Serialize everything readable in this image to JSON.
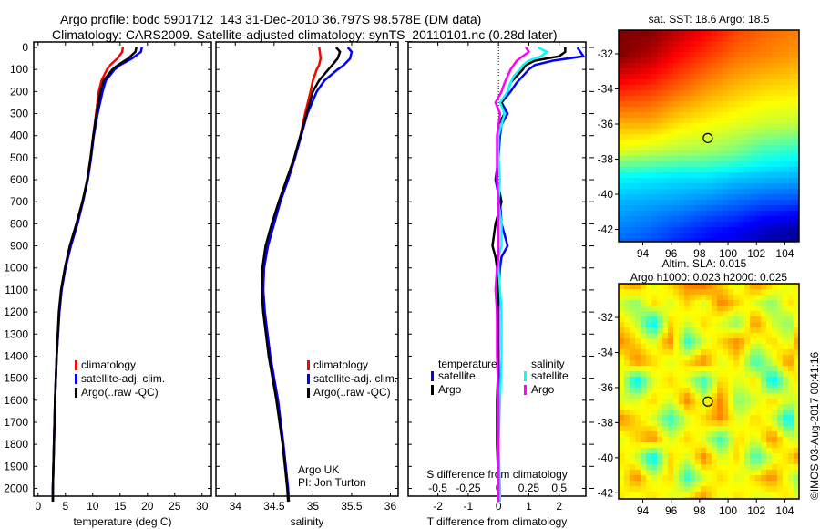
{
  "header": {
    "title_line1": "Argo profile: bodc 5901712_143 31-Dec-2010 36.797S 98.578E (DM data)",
    "title_line2": "Climatology: CARS2009. Satellite-adjusted climatology: synTS_20110101.nc (0.28d later)"
  },
  "footer": {
    "credit": "©IMOS 03-Aug-2017 00:41:16",
    "institution": "Argo UK",
    "pi": "PI: Jon Turton"
  },
  "colors": {
    "climatology": "#ff0000",
    "satellite": "#0000ff",
    "argo": "#000000",
    "sal_satellite": "#00ffff",
    "sal_argo": "#ff00ff"
  },
  "chart_data": [
    {
      "type": "line",
      "name": "temperature",
      "xlabel": "temperature (deg C)",
      "xlim": [
        -0.8,
        31.7
      ],
      "ylim": [
        2060,
        0
      ],
      "xticks": [
        0,
        5,
        10,
        15,
        20,
        25,
        30
      ],
      "yticks": [
        0,
        100,
        200,
        300,
        400,
        500,
        600,
        700,
        800,
        900,
        1000,
        1100,
        1200,
        1300,
        1400,
        1500,
        1600,
        1700,
        1800,
        1900,
        2000
      ],
      "depth": [
        0,
        20,
        50,
        80,
        100,
        150,
        200,
        300,
        400,
        500,
        600,
        700,
        800,
        900,
        1000,
        1100,
        1200,
        1400,
        1600,
        1800,
        2000,
        2060
      ],
      "series": [
        {
          "name": "climatology",
          "color": "#ff0000",
          "values": [
            15.5,
            15.4,
            14.5,
            13.2,
            12.6,
            11.6,
            11.1,
            10.6,
            10.1,
            9.6,
            9.0,
            8.2,
            7.2,
            6.0,
            5.0,
            4.3,
            3.9,
            3.4,
            3.1,
            2.9,
            2.7,
            2.7
          ]
        },
        {
          "name": "satellite-adj. clim.",
          "color": "#0000ff",
          "values": [
            19.0,
            18.8,
            17.2,
            15.0,
            14.0,
            12.4,
            11.8,
            10.9,
            10.2,
            9.7,
            9.1,
            8.2,
            7.2,
            6.0,
            5.0,
            4.3,
            3.9,
            3.4,
            3.1,
            2.9,
            2.7,
            2.7
          ]
        },
        {
          "name": "Argo(..raw -QC)",
          "color": "#000000",
          "values": [
            18.0,
            17.8,
            16.5,
            14.6,
            13.6,
            12.0,
            11.4,
            10.7,
            10.1,
            9.6,
            9.0,
            8.1,
            7.0,
            5.8,
            4.9,
            4.2,
            3.8,
            3.4,
            3.1,
            2.9,
            2.7,
            2.7
          ]
        }
      ],
      "legend": [
        "climatology",
        "satellite-adj. clim.",
        "Argo(..raw -QC)"
      ],
      "legend_position": "lower-center"
    },
    {
      "type": "line",
      "name": "salinity",
      "xlabel": "salinity",
      "xlim": [
        33.75,
        36.1
      ],
      "ylim": [
        2060,
        0
      ],
      "xticks": [
        34,
        34.5,
        35,
        35.5,
        36
      ],
      "depth": [
        0,
        20,
        50,
        80,
        100,
        150,
        200,
        300,
        400,
        500,
        600,
        700,
        800,
        900,
        1000,
        1100,
        1200,
        1400,
        1600,
        1800,
        2000,
        2060
      ],
      "series": [
        {
          "name": "climatology",
          "color": "#ff0000",
          "values": [
            35.08,
            35.09,
            35.1,
            35.08,
            35.05,
            35.0,
            34.97,
            34.9,
            34.84,
            34.77,
            34.68,
            34.58,
            34.5,
            34.42,
            34.37,
            34.36,
            34.38,
            34.45,
            34.55,
            34.62,
            34.68,
            34.69
          ]
        },
        {
          "name": "satellite-adj. clim.",
          "color": "#0000ff",
          "values": [
            35.45,
            35.5,
            35.48,
            35.4,
            35.32,
            35.15,
            35.05,
            34.93,
            34.85,
            34.77,
            34.68,
            34.58,
            34.5,
            34.42,
            34.37,
            34.36,
            34.38,
            34.45,
            34.55,
            34.62,
            34.68,
            34.69
          ]
        },
        {
          "name": "Argo(..raw -QC)",
          "color": "#000000",
          "values": [
            35.3,
            35.35,
            35.32,
            35.25,
            35.2,
            35.08,
            35.0,
            34.92,
            34.84,
            34.76,
            34.66,
            34.56,
            34.47,
            34.39,
            34.35,
            34.34,
            34.36,
            34.43,
            34.53,
            34.61,
            34.67,
            34.68
          ]
        }
      ],
      "legend": [
        "climatology",
        "satellite-adj. clim.",
        "Argo(..raw -QC)"
      ],
      "legend_position": "lower-center"
    },
    {
      "type": "line",
      "name": "differences",
      "xlabel": "T difference from climatology",
      "xlim": [
        -2.98,
        2.88
      ],
      "ylim": [
        2060,
        0
      ],
      "xticks": [
        -2,
        -1,
        0,
        1,
        2
      ],
      "s_label": "S difference from climatology",
      "s_ticks": [
        -0.5,
        -0.25,
        0,
        0.25,
        0.5
      ],
      "depth": [
        0,
        20,
        40,
        60,
        80,
        100,
        130,
        160,
        200,
        250,
        300,
        350,
        400,
        500,
        600,
        700,
        800,
        900,
        950,
        1000,
        1100,
        1200,
        1400,
        1600,
        1800,
        2000,
        2060
      ],
      "series": [
        {
          "name": "temperature satellite",
          "color": "#0000ff",
          "values": [
            2.6,
            2.7,
            2.8,
            1.8,
            1.2,
            1.0,
            0.8,
            0.6,
            0.4,
            0.1,
            0.3,
            0.1,
            0.05,
            0.0,
            -0.1,
            0.05,
            0.1,
            0.3,
            0.1,
            0.05,
            0.0,
            0.0,
            0.0,
            0.02,
            0.0,
            0.0,
            0.0
          ]
        },
        {
          "name": "temperature Argo",
          "color": "#000000",
          "values": [
            2.2,
            2.2,
            2.0,
            1.2,
            0.9,
            0.8,
            0.6,
            0.4,
            0.3,
            0.1,
            0.2,
            0.0,
            0.0,
            0.0,
            -0.05,
            0.1,
            -0.1,
            -0.2,
            -0.1,
            -0.05,
            0.0,
            -0.05,
            0.0,
            -0.05,
            -0.05,
            0.0,
            0.0
          ]
        },
        {
          "name": "salinity satellite",
          "color": "#00ffff",
          "values": [
            1.3,
            1.6,
            1.4,
            1.0,
            0.8,
            0.7,
            0.5,
            0.4,
            0.3,
            0.05,
            0.2,
            0.1,
            0.0,
            0.0,
            0.05,
            0.0,
            0.1,
            0.1,
            0.0,
            0.0,
            0.05,
            0.1,
            0.1,
            0.05,
            0.0,
            0.05,
            0.05
          ]
        },
        {
          "name": "salinity Argo",
          "color": "#ff00ff",
          "values": [
            0.9,
            1.0,
            0.8,
            0.6,
            0.5,
            0.4,
            0.3,
            0.2,
            0.1,
            -0.1,
            0.05,
            0.0,
            -0.05,
            -0.05,
            -0.05,
            0.0,
            0.0,
            0.0,
            0.0,
            -0.05,
            -0.1,
            -0.05,
            -0.05,
            0.0,
            0.0,
            0.0,
            0.0
          ]
        }
      ],
      "legend_headers": [
        "temperature",
        "salinity"
      ],
      "legend": [
        "satellite",
        "Argo",
        "satellite",
        "Argo"
      ],
      "legend_position": "lower-center"
    },
    {
      "type": "heatmap",
      "name": "sst-map",
      "title": "sat. SST: 18.6  Argo: 18.5",
      "xlim": [
        92.3,
        105
      ],
      "ylim": [
        -42.7,
        -30.65
      ],
      "xticks": [
        94,
        96,
        98,
        100,
        102,
        104
      ],
      "xticklabels": [
        "94",
        "96",
        "98",
        "100",
        "102",
        "104"
      ],
      "yticks": [
        -32,
        -34,
        -36,
        -38,
        -40,
        -42
      ],
      "lon": [
        92.3,
        94.5,
        96.5,
        98.5,
        100.5,
        102.5,
        105
      ],
      "lat": [
        -30.65,
        -32,
        -34,
        -36,
        -37.5,
        -39,
        -40.5,
        -42,
        -42.7
      ],
      "values": [
        [
          22,
          22,
          21.5,
          21,
          20.5,
          20.2,
          20
        ],
        [
          22,
          21.6,
          21,
          20.6,
          20.2,
          20,
          19.8
        ],
        [
          20.8,
          20.6,
          20.2,
          19.8,
          19.5,
          19.3,
          19.2
        ],
        [
          19.6,
          19.6,
          19.2,
          19,
          18.8,
          18.6,
          18.5
        ],
        [
          18.8,
          18.6,
          18.4,
          18.3,
          18,
          17.5,
          17.3
        ],
        [
          17.0,
          16.9,
          16.8,
          16.8,
          16.6,
          16.5,
          16.4
        ],
        [
          16.4,
          16.3,
          16.2,
          16.0,
          15.8,
          15.6,
          15.5
        ],
        [
          16.0,
          15.8,
          15.5,
          15.2,
          15.0,
          14.6,
          14.3
        ],
        [
          15.8,
          15.6,
          15.3,
          15.0,
          14.8,
          14.4,
          14.1
        ]
      ],
      "crange": [
        14,
        22
      ],
      "marker": {
        "lon": 98.578,
        "lat": -36.797
      }
    },
    {
      "type": "heatmap",
      "name": "sla-map",
      "title_line1": "Altim. SLA: 0.015",
      "title_line2": "Argo h1000: 0.023 h2000: 0.025",
      "xlim": [
        92.3,
        105
      ],
      "ylim": [
        -42.35,
        -30.07
      ],
      "xticks": [
        94,
        96,
        98,
        100,
        102,
        104
      ],
      "xticklabels": [
        "94",
        "96",
        "98",
        "100",
        "102",
        "104"
      ],
      "yticks": [
        -32,
        -34,
        -36,
        -38,
        -40,
        -42
      ],
      "lon": [
        92.3,
        93.5,
        94.7,
        95.9,
        97.1,
        98.3,
        99.5,
        100.7,
        101.9,
        103.1,
        104.3,
        105
      ],
      "lat": [
        -30.07,
        -31.2,
        -32.3,
        -33.4,
        -34.5,
        -35.6,
        -36.7,
        -37.8,
        -38.9,
        -40,
        -41.1,
        -42.35
      ],
      "values": [
        [
          0.05,
          0.1,
          0.0,
          0.05,
          0.1,
          0.12,
          0.05,
          0.0,
          0.1,
          0.05,
          0.0,
          0.05
        ],
        [
          0.0,
          -0.05,
          0.05,
          0.0,
          0.05,
          0.0,
          0.1,
          0.05,
          0.0,
          -0.05,
          0.05,
          0.0
        ],
        [
          0.05,
          0.0,
          -0.15,
          0.05,
          0.0,
          0.05,
          0.0,
          -0.05,
          0.1,
          0.0,
          -0.05,
          0.05
        ],
        [
          0.1,
          0.05,
          0.0,
          0.1,
          -0.1,
          0.0,
          0.05,
          0.1,
          0.0,
          0.05,
          0.0,
          0.1
        ],
        [
          0.0,
          0.1,
          0.05,
          0.0,
          0.05,
          0.1,
          0.0,
          0.05,
          -0.1,
          0.0,
          0.1,
          0.0
        ],
        [
          0.05,
          -0.15,
          0.0,
          0.05,
          0.0,
          -0.1,
          0.05,
          0.0,
          0.05,
          -0.15,
          0.0,
          0.05
        ],
        [
          0.0,
          0.0,
          0.05,
          0.0,
          0.1,
          0.0,
          0.1,
          -0.05,
          0.0,
          0.05,
          0.0,
          0.0
        ],
        [
          0.1,
          0.05,
          0.0,
          -0.1,
          0.0,
          0.05,
          0.1,
          0.0,
          0.05,
          0.0,
          -0.15,
          0.05
        ],
        [
          0.0,
          0.05,
          0.1,
          0.0,
          0.05,
          0.0,
          -0.1,
          0.05,
          0.0,
          0.1,
          0.0,
          0.0
        ],
        [
          0.05,
          0.0,
          -0.15,
          0.05,
          0.0,
          0.1,
          0.0,
          0.05,
          -0.1,
          0.0,
          0.05,
          0.1
        ],
        [
          0.0,
          0.1,
          0.0,
          0.05,
          -0.1,
          0.0,
          0.05,
          0.0,
          0.05,
          0.1,
          0.0,
          -0.05
        ],
        [
          0.05,
          0.0,
          0.05,
          0.0,
          0.05,
          0.1,
          0.0,
          0.05,
          0.0,
          0.0,
          0.05,
          0.0
        ]
      ],
      "crange": [
        -0.35,
        0.25
      ],
      "marker": {
        "lon": 98.578,
        "lat": -36.797
      }
    }
  ]
}
